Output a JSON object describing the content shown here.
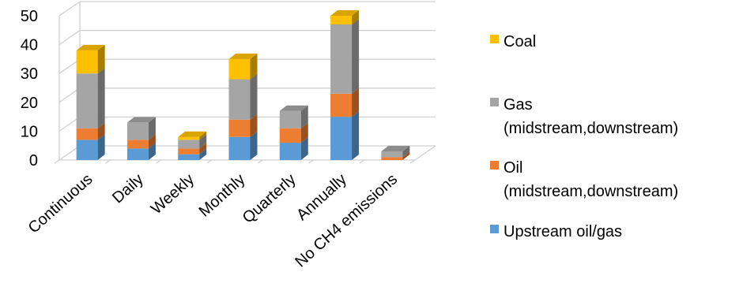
{
  "chart_data": {
    "type": "bar",
    "stacked": true,
    "three_d": true,
    "categories": [
      "Continuous",
      "Daily",
      "Weekly",
      "Monthly",
      "Quarterly",
      "Annually",
      "No CH4 emissions"
    ],
    "series": [
      {
        "name": "Upstream oil/gas",
        "color": "#5B9BD5",
        "values": [
          7,
          4,
          2,
          8,
          6,
          15,
          0
        ]
      },
      {
        "name": "Oil (midstream,downstream)",
        "color": "#ED7D31",
        "values": [
          4,
          3,
          2,
          6,
          5,
          8,
          1
        ]
      },
      {
        "name": "Gas (midstream,downstream)",
        "color": "#A5A5A5",
        "values": [
          19,
          6,
          3,
          14,
          6,
          24,
          2
        ]
      },
      {
        "name": "Coal",
        "color": "#FFC000",
        "values": [
          8,
          0,
          1,
          7,
          0,
          3,
          0
        ]
      }
    ],
    "y_ticks": [
      "0",
      "10",
      "20",
      "30",
      "40",
      "50"
    ],
    "ylim": [
      0,
      50
    ],
    "grid": true,
    "legend_position": "right"
  },
  "legend": {
    "items": [
      {
        "label": "Coal",
        "color": "#FFC000"
      },
      {
        "label": "Gas\n(midstream,downstream)",
        "color": "#A5A5A5"
      },
      {
        "label": "Oil\n(midstream,downstream)",
        "color": "#ED7D31"
      },
      {
        "label": "Upstream oil/gas",
        "color": "#5B9BD5"
      }
    ]
  }
}
